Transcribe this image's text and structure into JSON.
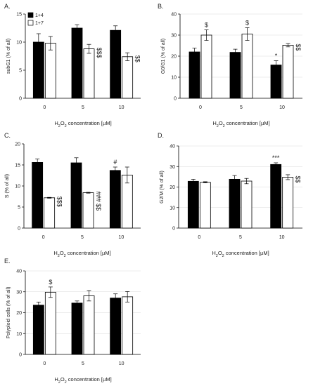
{
  "legend": {
    "items": [
      {
        "label": "1+4",
        "fill": "#000000"
      },
      {
        "label": "1+7",
        "fill": "#ffffff"
      }
    ]
  },
  "colors": {
    "bar_a": "#000000",
    "bar_b": "#ffffff",
    "axis": "#000000",
    "grid": "#d9d9d9"
  },
  "chart_data": [
    {
      "panel": "A.",
      "type": "bar",
      "categories": [
        "0",
        "5",
        "10"
      ],
      "series": [
        {
          "name": "1+4",
          "values": [
            10.0,
            12.5,
            12.1
          ],
          "errors": [
            1.5,
            0.6,
            0.8
          ]
        },
        {
          "name": "1+7",
          "values": [
            9.8,
            8.8,
            7.4
          ],
          "errors": [
            1.2,
            0.8,
            0.7
          ]
        }
      ],
      "annotations": [
        [
          "",
          ""
        ],
        [
          "",
          "$$$"
        ],
        [
          "",
          "$$"
        ]
      ],
      "ylabel": "subG1 (% of all)",
      "xlabel": "H2O2 concentration [µM]",
      "ylim": [
        0,
        15
      ],
      "yticks": [
        0,
        5,
        10,
        15
      ],
      "grid": false
    },
    {
      "panel": "B.",
      "type": "bar",
      "categories": [
        "0",
        "5",
        "10"
      ],
      "series": [
        {
          "name": "1+4",
          "values": [
            22,
            21.8,
            15.8
          ],
          "errors": [
            1.8,
            1.5,
            2.0
          ]
        },
        {
          "name": "1+7",
          "values": [
            30,
            30.5,
            25.2
          ],
          "errors": [
            2.5,
            3.0,
            0.8
          ]
        }
      ],
      "annotations": [
        [
          "",
          "$"
        ],
        [
          "",
          "$"
        ],
        [
          "*",
          "$$"
        ]
      ],
      "ylabel": "G0/G1 (% of all)",
      "xlabel": "H2O2 concentration [µM]",
      "ylim": [
        0,
        40
      ],
      "yticks": [
        0,
        10,
        20,
        30,
        40
      ],
      "grid": true
    },
    {
      "panel": "C.",
      "type": "bar",
      "categories": [
        "0",
        "5",
        "10"
      ],
      "series": [
        {
          "name": "1+4",
          "values": [
            15.6,
            15.5,
            13.7
          ],
          "errors": [
            0.8,
            1.2,
            0.8
          ]
        },
        {
          "name": "1+7",
          "values": [
            7.2,
            8.4,
            12.6
          ],
          "errors": [
            0.1,
            0.1,
            1.9
          ]
        }
      ],
      "annotations": [
        [
          "",
          "$$$"
        ],
        [
          "",
          "###  $$"
        ],
        [
          "#",
          ""
        ]
      ],
      "ylabel": "S (% of all)",
      "xlabel": "H2O2 concentration [µM]",
      "ylim": [
        0,
        20
      ],
      "yticks": [
        0,
        5,
        10,
        15,
        20
      ],
      "grid": false
    },
    {
      "panel": "D.",
      "type": "bar",
      "categories": [
        "0",
        "5",
        "10"
      ],
      "series": [
        {
          "name": "1+4",
          "values": [
            22.8,
            23.8,
            31.0
          ],
          "errors": [
            1.0,
            1.8,
            0.8
          ]
        },
        {
          "name": "1+7",
          "values": [
            22.3,
            22.9,
            24.8
          ],
          "errors": [
            0.3,
            1.3,
            1.2
          ]
        }
      ],
      "annotations": [
        [
          "",
          ""
        ],
        [
          "",
          ""
        ],
        [
          "***",
          "$$"
        ]
      ],
      "ylabel": "G2/M (% of all)",
      "xlabel": "H2O2 concentration [µM]",
      "ylim": [
        0,
        40
      ],
      "yticks": [
        0,
        10,
        20,
        30,
        40
      ],
      "grid": true
    },
    {
      "panel": "E.",
      "type": "bar",
      "categories": [
        "0",
        "5",
        "10"
      ],
      "series": [
        {
          "name": "1+4",
          "values": [
            23.6,
            24.6,
            27.0
          ],
          "errors": [
            1.5,
            1.0,
            2.0
          ]
        },
        {
          "name": "1+7",
          "values": [
            29.8,
            28.1,
            27.6
          ],
          "errors": [
            2.5,
            2.5,
            2.5
          ]
        }
      ],
      "annotations": [
        [
          "",
          "$"
        ],
        [
          "",
          ""
        ],
        [
          "",
          ""
        ]
      ],
      "ylabel": "Polyploid cells (% of all)",
      "xlabel": "H2O2 concentration [µM]",
      "ylim": [
        0,
        40
      ],
      "yticks": [
        0,
        10,
        20,
        30,
        40
      ],
      "grid": true
    }
  ]
}
